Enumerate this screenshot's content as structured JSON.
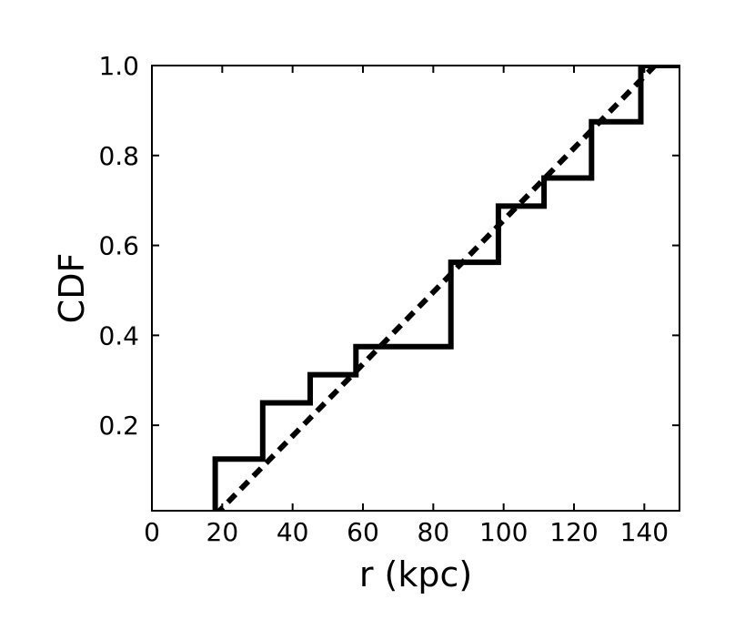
{
  "chart_data": {
    "type": "line",
    "title": "",
    "xlabel": "r (kpc)",
    "ylabel": "CDF",
    "xlim": [
      0,
      150
    ],
    "ylim": [
      0.01,
      1.0
    ],
    "grid": false,
    "x_ticks": [
      0,
      20,
      40,
      60,
      80,
      100,
      120,
      140
    ],
    "x_tick_labels": [
      "0",
      "20",
      "40",
      "60",
      "80",
      "100",
      "120",
      "140"
    ],
    "y_ticks": [
      0.2,
      0.4,
      0.6,
      0.8,
      1.0
    ],
    "y_tick_labels": [
      "0.2",
      "0.4",
      "0.6",
      "0.8",
      "1.0"
    ],
    "series": [
      {
        "style": "step-solid",
        "color": "#000000",
        "x": [
          18,
          18,
          31.5,
          31.5,
          45,
          45,
          58,
          58,
          85,
          85,
          98.5,
          98.5,
          111.5,
          111.5,
          125,
          125,
          139,
          139,
          150
        ],
        "y": [
          0.01,
          0.125,
          0.125,
          0.25,
          0.25,
          0.3125,
          0.3125,
          0.375,
          0.375,
          0.5625,
          0.5625,
          0.6875,
          0.6875,
          0.75,
          0.75,
          0.875,
          0.875,
          1.0,
          1.0
        ]
      },
      {
        "style": "dashed",
        "color": "#000000",
        "x": [
          18,
          143
        ],
        "y": [
          0.0,
          1.0
        ]
      }
    ]
  }
}
